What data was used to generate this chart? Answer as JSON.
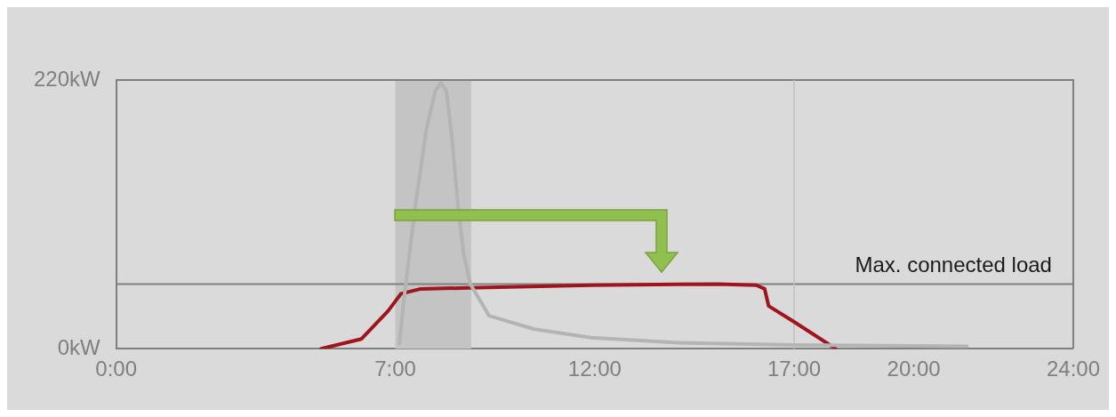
{
  "chart_data": {
    "type": "line",
    "x": [
      7.1,
      7.21,
      7.5,
      7.78,
      8.0,
      8.14,
      8.28,
      8.42,
      8.57,
      8.71,
      8.88,
      9.35,
      10.49,
      11.91,
      14.0,
      17.0,
      21.33
    ],
    "series": [
      {
        "color": "#b4b4b4",
        "values": [
          4,
          39,
          117,
          180,
          211,
          218,
          211,
          172,
          117,
          78,
          53,
          27,
          16,
          9,
          5,
          3,
          2
        ]
      },
      {
        "color": "#a0141e",
        "x": [
          5.14,
          6.15,
          6.82,
          7.14,
          7.64,
          9.07,
          11.92,
          15.08,
          16.05,
          16.26,
          16.36,
          17.0,
          18.04
        ],
        "values": [
          0,
          8,
          31,
          45,
          49,
          50,
          52,
          53,
          52,
          49,
          35,
          22,
          0
        ]
      }
    ],
    "xlim": [
      0,
      24
    ],
    "xticks": [
      {
        "value": 0,
        "label": "0:00"
      },
      {
        "value": 7,
        "label": "7:00"
      },
      {
        "value": 12,
        "label": "12:00"
      },
      {
        "value": 17,
        "label": "17:00"
      },
      {
        "value": 20,
        "label": "20:00"
      },
      {
        "value": 24,
        "label": "24:00"
      }
    ],
    "ylim": [
      0,
      220
    ],
    "yticks": [
      {
        "value": 0,
        "label": "0kW"
      },
      {
        "value": 220,
        "label": "220kW"
      }
    ],
    "ref_lines": [
      {
        "axis": "y",
        "value": 53,
        "label": "Max. connected load",
        "color": "#7f7f7f"
      },
      {
        "axis": "x",
        "value": 17,
        "color": "#c0c0c0"
      }
    ],
    "bands": [
      {
        "axis": "x",
        "from": 7,
        "to": 8.9,
        "color": "#c4c4c4"
      }
    ],
    "legend": false,
    "marker": "none",
    "line_style": "solid"
  }
}
